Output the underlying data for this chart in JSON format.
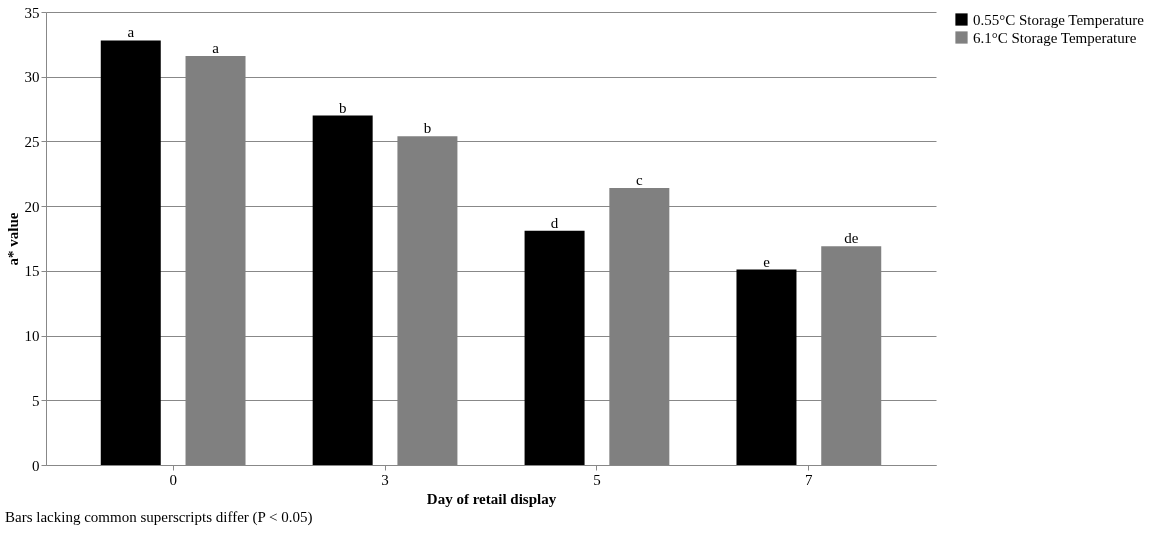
{
  "chart_data": {
    "type": "bar",
    "xlabel": "Day of retail display",
    "ylabel": "a* value",
    "categories": [
      "0",
      "3",
      "5",
      "7"
    ],
    "series": [
      {
        "name": "0.55°C Storage Temperature",
        "color": "#000000",
        "values": [
          32.8,
          27.0,
          18.1,
          15.1
        ],
        "value_labels": [
          "a",
          "b",
          "d",
          "e"
        ]
      },
      {
        "name": "6.1°C Storage Temperature",
        "color": "#808080",
        "values": [
          31.6,
          25.4,
          21.4,
          16.9
        ],
        "value_labels": [
          "a",
          "b",
          "c",
          "de"
        ]
      }
    ],
    "ylim": [
      0,
      35
    ],
    "yticks": [
      0,
      5,
      10,
      15,
      20,
      25,
      30,
      35
    ],
    "grid": "y",
    "legend": "right",
    "annotations": [
      "Bars lacking common superscripts differ (P < 0.05)"
    ]
  }
}
